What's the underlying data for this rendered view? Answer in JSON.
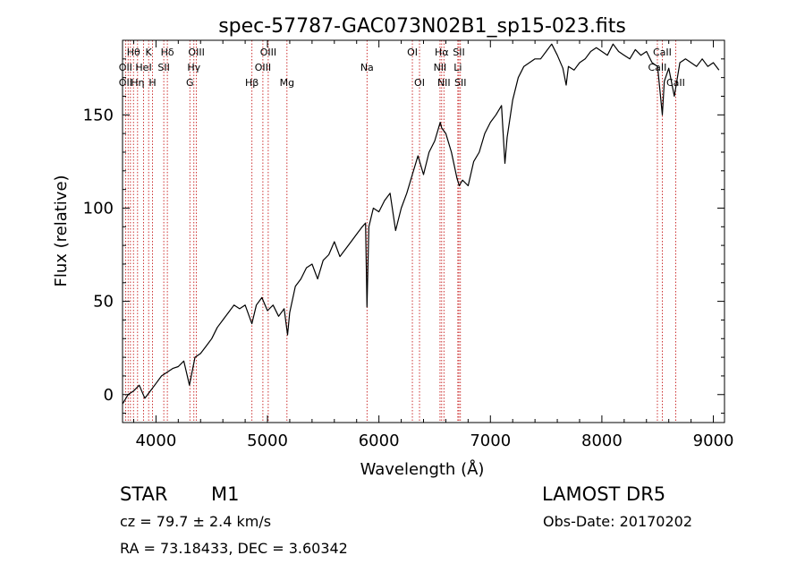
{
  "chart_data": {
    "type": "line",
    "title": "spec-57787-GAC073N02B1_sp15-023.fits",
    "xlabel": "Wavelength (Å)",
    "ylabel": "Flux (relative)",
    "xlim": [
      3700,
      9100
    ],
    "ylim": [
      -15,
      190
    ],
    "xticks": [
      4000,
      5000,
      6000,
      7000,
      8000,
      9000
    ],
    "yticks": [
      0,
      50,
      100,
      150
    ],
    "grid": false,
    "series": [
      {
        "color": "#000000",
        "x": [
          3700,
          3750,
          3800,
          3850,
          3900,
          3950,
          4000,
          4050,
          4100,
          4150,
          4200,
          4250,
          4300,
          4350,
          4400,
          4450,
          4500,
          4550,
          4600,
          4650,
          4700,
          4750,
          4800,
          4860,
          4900,
          4950,
          5000,
          5050,
          5100,
          5150,
          5180,
          5200,
          5250,
          5300,
          5350,
          5400,
          5450,
          5500,
          5550,
          5600,
          5650,
          5700,
          5750,
          5800,
          5850,
          5880,
          5893,
          5910,
          5950,
          6000,
          6050,
          6100,
          6150,
          6200,
          6250,
          6300,
          6350,
          6400,
          6450,
          6500,
          6550,
          6563,
          6600,
          6650,
          6700,
          6720,
          6750,
          6800,
          6850,
          6900,
          6950,
          7000,
          7050,
          7100,
          7130,
          7150,
          7200,
          7250,
          7300,
          7350,
          7400,
          7450,
          7500,
          7550,
          7600,
          7650,
          7680,
          7700,
          7750,
          7800,
          7850,
          7900,
          7950,
          8000,
          8050,
          8100,
          8150,
          8200,
          8250,
          8300,
          8350,
          8400,
          8450,
          8500,
          8542,
          8560,
          8600,
          8650,
          8700,
          8750,
          8800,
          8850,
          8900,
          8950,
          9000,
          9050
        ],
        "values": [
          -5,
          0,
          2,
          5,
          -2,
          2,
          6,
          10,
          12,
          14,
          15,
          18,
          5,
          20,
          22,
          26,
          30,
          36,
          40,
          44,
          48,
          46,
          48,
          38,
          48,
          52,
          45,
          48,
          42,
          46,
          32,
          44,
          58,
          62,
          68,
          70,
          62,
          72,
          75,
          82,
          74,
          78,
          82,
          86,
          90,
          92,
          47,
          90,
          100,
          98,
          104,
          108,
          88,
          100,
          108,
          118,
          128,
          118,
          130,
          136,
          146,
          143,
          140,
          130,
          116,
          112,
          115,
          112,
          125,
          130,
          140,
          146,
          150,
          155,
          124,
          138,
          158,
          170,
          176,
          178,
          180,
          180,
          184,
          188,
          182,
          175,
          166,
          176,
          174,
          178,
          180,
          184,
          186,
          184,
          182,
          188,
          184,
          182,
          180,
          185,
          182,
          184,
          178,
          176,
          150,
          168,
          175,
          160,
          178,
          180,
          178,
          176,
          180,
          176,
          178,
          174
        ]
      }
    ],
    "line_labels": [
      {
        "text": "Hθ",
        "x": 3798,
        "row": 1
      },
      {
        "text": "K",
        "x": 3934,
        "row": 1
      },
      {
        "text": "Hδ",
        "x": 4102,
        "row": 1
      },
      {
        "text": "OIII",
        "x": 4363,
        "row": 1
      },
      {
        "text": "OIII",
        "x": 5007,
        "row": 1
      },
      {
        "text": "OI",
        "x": 6300,
        "row": 1
      },
      {
        "text": "Hα",
        "x": 6563,
        "row": 1
      },
      {
        "text": "SII",
        "x": 6717,
        "row": 1
      },
      {
        "text": "CaII",
        "x": 8542,
        "row": 1
      },
      {
        "text": "OII",
        "x": 3727,
        "row": 2
      },
      {
        "text": "HeI",
        "x": 3889,
        "row": 2
      },
      {
        "text": "SII",
        "x": 4070,
        "row": 2
      },
      {
        "text": "Hγ",
        "x": 4340,
        "row": 2
      },
      {
        "text": "OIII",
        "x": 4959,
        "row": 2
      },
      {
        "text": "Na",
        "x": 5893,
        "row": 2
      },
      {
        "text": "NII",
        "x": 6548,
        "row": 2
      },
      {
        "text": "Li",
        "x": 6708,
        "row": 2
      },
      {
        "text": "CaII",
        "x": 8498,
        "row": 2
      },
      {
        "text": "OII",
        "x": 3727,
        "row": 3
      },
      {
        "text": "Hη",
        "x": 3835,
        "row": 3
      },
      {
        "text": "H",
        "x": 3969,
        "row": 3
      },
      {
        "text": "G",
        "x": 4304,
        "row": 3
      },
      {
        "text": "Hβ",
        "x": 4861,
        "row": 3
      },
      {
        "text": "Mg",
        "x": 5175,
        "row": 3
      },
      {
        "text": "OI",
        "x": 6364,
        "row": 3
      },
      {
        "text": "NII",
        "x": 6583,
        "row": 3
      },
      {
        "text": "SII",
        "x": 6731,
        "row": 3
      },
      {
        "text": "CaII",
        "x": 8662,
        "row": 3
      }
    ],
    "line_marks": [
      3727,
      3750,
      3771,
      3798,
      3835,
      3889,
      3934,
      3969,
      4070,
      4102,
      4304,
      4340,
      4363,
      4861,
      4959,
      5007,
      5175,
      5893,
      6300,
      6364,
      6548,
      6563,
      6583,
      6708,
      6717,
      6731,
      8498,
      8542,
      8662
    ],
    "line_mark_color": "#c00000"
  },
  "info": {
    "class_label": "STAR",
    "subclass": "M1",
    "survey": "LAMOST DR5",
    "cz": "cz = 79.7 ± 2.4 km/s",
    "obs_date": "Obs-Date: 20170202",
    "coords": "RA =  73.18433, DEC =   3.60342"
  }
}
